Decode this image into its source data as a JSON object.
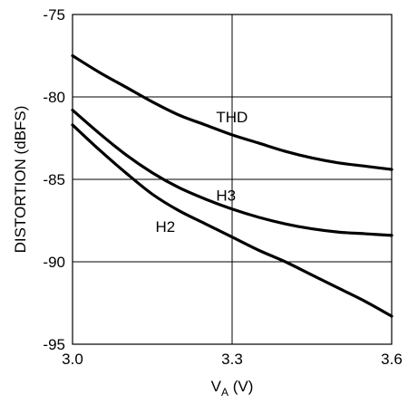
{
  "chart_data": {
    "type": "line",
    "xlabel": {
      "main": "V",
      "sub": "A",
      "unit": " (V)"
    },
    "ylabel": "DISTORTION (dBFS)",
    "xlim": [
      3.0,
      3.6
    ],
    "ylim": [
      -95,
      -75
    ],
    "x_ticks": [
      "3.0",
      "3.3",
      "3.6"
    ],
    "y_ticks": [
      "-75",
      "-80",
      "-85",
      "-90",
      "-95"
    ],
    "grid": true,
    "series": [
      {
        "name": "THD",
        "x": [
          3.0,
          3.05,
          3.1,
          3.15,
          3.2,
          3.25,
          3.3,
          3.35,
          3.4,
          3.45,
          3.5,
          3.55,
          3.6
        ],
        "y": [
          -77.5,
          -78.5,
          -79.4,
          -80.3,
          -81.1,
          -81.7,
          -82.3,
          -82.8,
          -83.3,
          -83.7,
          -84.0,
          -84.2,
          -84.4
        ]
      },
      {
        "name": "H3",
        "x": [
          3.0,
          3.05,
          3.1,
          3.15,
          3.2,
          3.25,
          3.3,
          3.35,
          3.4,
          3.45,
          3.5,
          3.55,
          3.6
        ],
        "y": [
          -80.8,
          -82.2,
          -83.5,
          -84.6,
          -85.5,
          -86.2,
          -86.8,
          -87.3,
          -87.7,
          -88.0,
          -88.2,
          -88.3,
          -88.4
        ]
      },
      {
        "name": "H2",
        "x": [
          3.0,
          3.05,
          3.1,
          3.15,
          3.2,
          3.25,
          3.3,
          3.35,
          3.4,
          3.45,
          3.5,
          3.55,
          3.6
        ],
        "y": [
          -81.7,
          -83.2,
          -84.6,
          -85.9,
          -86.9,
          -87.7,
          -88.5,
          -89.3,
          -90.0,
          -90.8,
          -91.6,
          -92.4,
          -93.3
        ]
      }
    ]
  }
}
